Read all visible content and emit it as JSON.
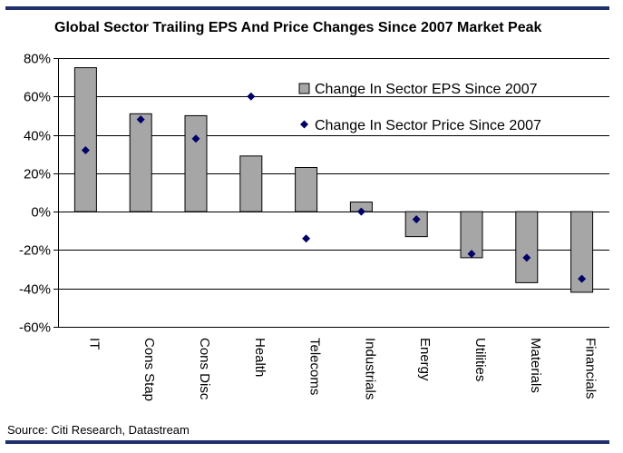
{
  "header": {
    "title": "Global Sector Trailing EPS And Price Changes Since 2007 Market Peak"
  },
  "footer": {
    "source": "Source: Citi Research, Datastream"
  },
  "colors": {
    "rule": "#1f2f6b",
    "bar_fill": "#a6a6a6",
    "bar_stroke": "#000000",
    "marker": "#000066",
    "grid": "#000000"
  },
  "chart_data": {
    "type": "bar",
    "title": "Global Sector Trailing EPS And Price Changes Since 2007 Market Peak",
    "xlabel": "",
    "ylabel": "",
    "ylim": [
      -60,
      80
    ],
    "yticks": [
      80,
      60,
      40,
      20,
      0,
      -20,
      -40,
      -60
    ],
    "ytick_labels": [
      "80%",
      "60%",
      "40%",
      "20%",
      "0%",
      "-20%",
      "-40%",
      "-60%"
    ],
    "grid": true,
    "legend_position": "top-right",
    "categories": [
      "IT",
      "Cons Stap",
      "Cons Disc",
      "Health",
      "Telecoms",
      "Industrials",
      "Energy",
      "Utilities",
      "Materials",
      "Financials"
    ],
    "series": [
      {
        "name": "Change In Sector EPS Since 2007",
        "kind": "bar",
        "values": [
          75,
          51,
          50,
          29,
          23,
          5,
          -13,
          -24,
          -37,
          -42
        ]
      },
      {
        "name": "Change In Sector Price Since 2007",
        "kind": "marker",
        "values": [
          32,
          48,
          38,
          60,
          -14,
          0,
          -4,
          -22,
          -24,
          -35
        ]
      }
    ]
  }
}
